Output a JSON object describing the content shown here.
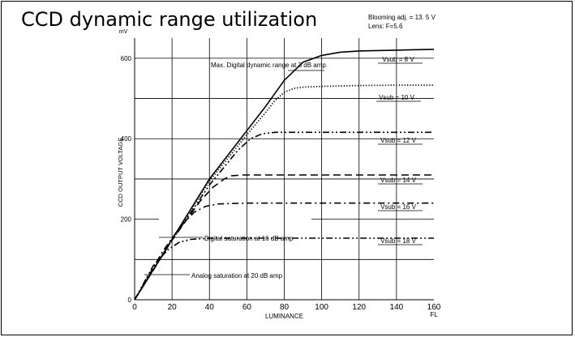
{
  "title": "CCD dynamic range utilization",
  "notes": [
    "Blooming adj. = 13. 5 V",
    "Lens: F=5.6"
  ],
  "chart_data": {
    "type": "line",
    "title": "CCD dynamic range utilization",
    "xlabel": "LUMINANCE",
    "xunit": "FL",
    "ylabel": "CCD OUTPUT VOLTAGE",
    "yunit": "mV",
    "xlim": [
      0,
      160
    ],
    "ylim": [
      0,
      650
    ],
    "xticks": [
      "0",
      "20",
      "40",
      "60",
      "80",
      "100",
      "120",
      "140",
      "160"
    ],
    "yticks": [
      "0",
      "200",
      "400",
      "600"
    ],
    "grid": true,
    "series": [
      {
        "name": "Vsub = 8 V",
        "style": "solid",
        "points": [
          [
            0,
            0
          ],
          [
            20,
            150
          ],
          [
            40,
            300
          ],
          [
            60,
            420
          ],
          [
            70,
            480
          ],
          [
            80,
            545
          ],
          [
            90,
            590
          ],
          [
            100,
            607
          ],
          [
            110,
            615
          ],
          [
            120,
            618
          ],
          [
            140,
            620
          ],
          [
            160,
            622
          ]
        ]
      },
      {
        "name": "Vsub = 10 V",
        "style": "dotted",
        "points": [
          [
            0,
            0
          ],
          [
            20,
            150
          ],
          [
            40,
            295
          ],
          [
            60,
            410
          ],
          [
            70,
            465
          ],
          [
            75,
            495
          ],
          [
            80,
            515
          ],
          [
            85,
            525
          ],
          [
            90,
            528
          ],
          [
            100,
            530
          ],
          [
            120,
            532
          ],
          [
            140,
            533
          ],
          [
            160,
            533
          ]
        ]
      },
      {
        "name": "Vsub = 12 V",
        "style": "dashdotdot",
        "points": [
          [
            0,
            0
          ],
          [
            20,
            148
          ],
          [
            40,
            285
          ],
          [
            55,
            370
          ],
          [
            62,
            400
          ],
          [
            68,
            412
          ],
          [
            75,
            416
          ],
          [
            90,
            416
          ],
          [
            160,
            416
          ]
        ]
      },
      {
        "name": "Vsub = 14 V",
        "style": "dashed",
        "points": [
          [
            0,
            0
          ],
          [
            20,
            148
          ],
          [
            35,
            245
          ],
          [
            42,
            280
          ],
          [
            48,
            300
          ],
          [
            52,
            308
          ],
          [
            58,
            310
          ],
          [
            80,
            310
          ],
          [
            160,
            310
          ]
        ]
      },
      {
        "name": "Vsub = 16 V",
        "style": "dashdot",
        "points": [
          [
            0,
            0
          ],
          [
            15,
            120
          ],
          [
            25,
            185
          ],
          [
            32,
            218
          ],
          [
            38,
            232
          ],
          [
            45,
            238
          ],
          [
            60,
            240
          ],
          [
            160,
            240
          ]
        ]
      },
      {
        "name": "Vsub = 18 V",
        "style": "dashdotdot",
        "points": [
          [
            0,
            0
          ],
          [
            10,
            85
          ],
          [
            18,
            125
          ],
          [
            24,
            143
          ],
          [
            30,
            150
          ],
          [
            40,
            153
          ],
          [
            160,
            153
          ]
        ]
      }
    ],
    "annotations": [
      "Max. Digital dynamic range at 3 dB amp",
      "Digital saturation at 16 dB amp",
      "Analog saturation at 20 dB amp"
    ]
  }
}
